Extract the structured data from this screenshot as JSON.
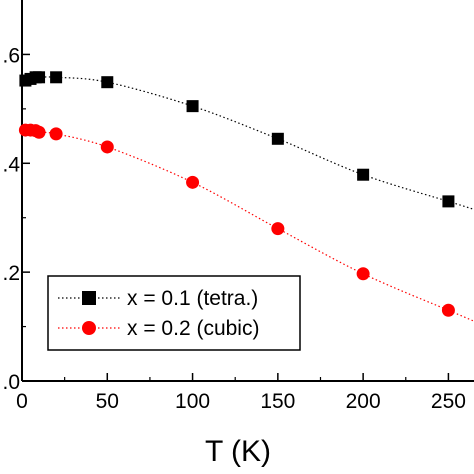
{
  "chart_data": {
    "type": "scatter",
    "xlabel": "T   (K)",
    "ylabel": "",
    "xlim": [
      0,
      265
    ],
    "ylim": [
      0.0,
      0.7
    ],
    "x_ticks": [
      0,
      50,
      100,
      150,
      200,
      250
    ],
    "x_tick_labels": [
      "0",
      "50",
      "100",
      "150",
      "200",
      "250"
    ],
    "y_ticks": [
      0.0,
      0.2,
      0.4,
      0.6
    ],
    "y_tick_labels": [
      ".0",
      ".2",
      ".4",
      ".6"
    ],
    "grid": false,
    "legend_position": "bottom-left",
    "series": [
      {
        "name": "x = 0.1 (tetra.)",
        "marker": "square",
        "color": "#000000",
        "line_style": "dotted",
        "x": [
          2,
          5,
          8,
          10,
          20,
          50,
          100,
          150,
          200,
          250
        ],
        "y": [
          0.552,
          0.555,
          0.558,
          0.558,
          0.558,
          0.549,
          0.505,
          0.445,
          0.379,
          0.33
        ]
      },
      {
        "name": "x = 0.2  (cubic)",
        "marker": "circle",
        "color": "#ff0000",
        "line_style": "dotted",
        "x": [
          2,
          5,
          8,
          10,
          20,
          50,
          100,
          150,
          200,
          250
        ],
        "y": [
          0.461,
          0.461,
          0.46,
          0.457,
          0.454,
          0.43,
          0.365,
          0.28,
          0.197,
          0.13
        ]
      }
    ]
  }
}
